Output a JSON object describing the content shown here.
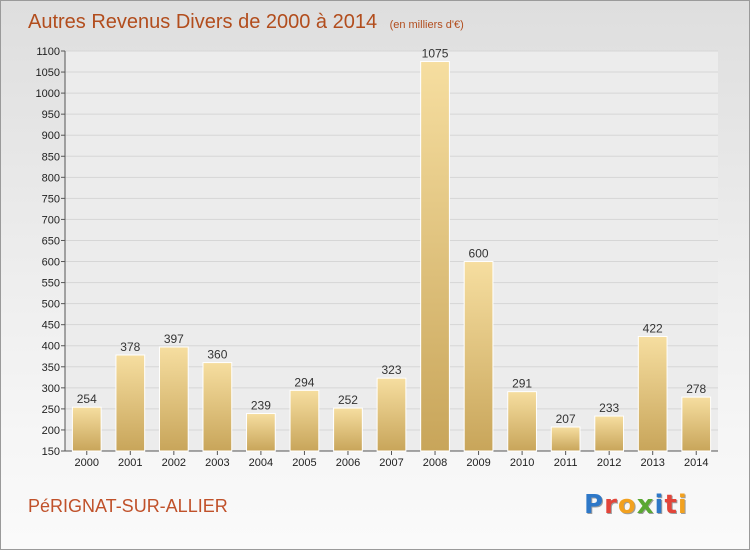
{
  "chart_data": {
    "type": "bar",
    "title": "Autres Revenus Divers de 2000 à 2014",
    "subtitle": "(en milliers d'€)",
    "categories": [
      "2000",
      "2001",
      "2002",
      "2003",
      "2004",
      "2005",
      "2006",
      "2007",
      "2008",
      "2009",
      "2010",
      "2011",
      "2012",
      "2013",
      "2014"
    ],
    "values": [
      254,
      378,
      397,
      360,
      239,
      294,
      252,
      323,
      1075,
      600,
      291,
      207,
      233,
      422,
      278
    ],
    "ylim": [
      150,
      1100
    ],
    "yticks": [
      150,
      200,
      250,
      300,
      350,
      400,
      450,
      500,
      550,
      600,
      650,
      700,
      750,
      800,
      850,
      900,
      950,
      1000,
      1050,
      1100
    ],
    "grid": true,
    "legend": "none",
    "bar_color": "#e8c97a",
    "title_color": "#b24d1d"
  },
  "footer": {
    "commune": "PéRIGNAT-SUR-ALLIER",
    "brand": "Proxiti",
    "brand_colors": [
      "#2e78c8",
      "#e2453a",
      "#f2a11f",
      "#5aa832",
      "#2e78c8",
      "#e2453a",
      "#f2a11f"
    ]
  }
}
